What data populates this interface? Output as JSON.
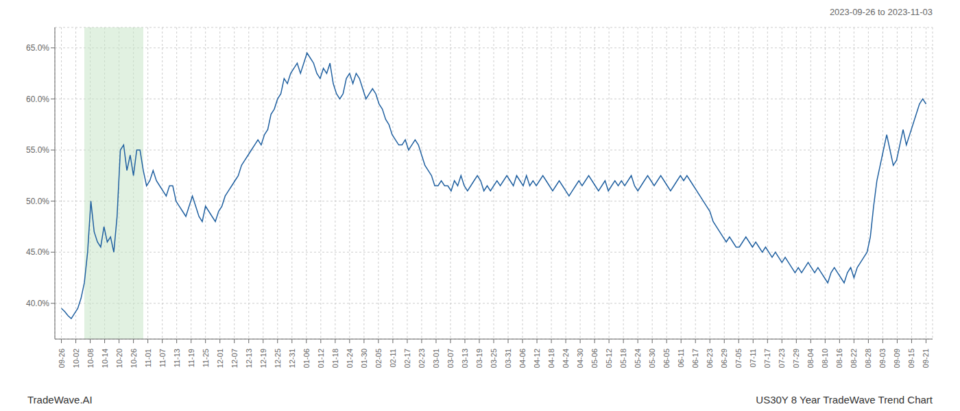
{
  "chart_data": {
    "type": "line",
    "title": "2023-09-26 to 2023-11-03",
    "annotations": [
      "TradeWave.AI",
      "US30Y 8 Year TradeWave Trend Chart"
    ],
    "color": "#2060a0",
    "grid": true,
    "ylim": [
      36.5,
      67.0
    ],
    "yticks": [
      {
        "value": 40.0,
        "label": "40.0%"
      },
      {
        "value": 45.0,
        "label": "45.0%"
      },
      {
        "value": 50.0,
        "label": "50.0%"
      },
      {
        "value": 55.0,
        "label": "55.0%"
      },
      {
        "value": 60.0,
        "label": "60.0%"
      },
      {
        "value": 65.0,
        "label": "65.0%"
      }
    ],
    "xlim": [
      -2,
      266
    ],
    "xticks": [
      {
        "value": 0,
        "label": "09-26"
      },
      {
        "value": 4.4,
        "label": "10-02"
      },
      {
        "value": 8.8,
        "label": "10-08"
      },
      {
        "value": 13.2,
        "label": "10-14"
      },
      {
        "value": 17.6,
        "label": "10-20"
      },
      {
        "value": 22,
        "label": "10-26"
      },
      {
        "value": 26.4,
        "label": "11-01"
      },
      {
        "value": 30.8,
        "label": "11-07"
      },
      {
        "value": 35.2,
        "label": "11-13"
      },
      {
        "value": 39.6,
        "label": "11-19"
      },
      {
        "value": 44,
        "label": "11-25"
      },
      {
        "value": 48.4,
        "label": "12-01"
      },
      {
        "value": 52.8,
        "label": "12-07"
      },
      {
        "value": 57.2,
        "label": "12-13"
      },
      {
        "value": 61.6,
        "label": "12-19"
      },
      {
        "value": 66,
        "label": "12-25"
      },
      {
        "value": 70.4,
        "label": "12-31"
      },
      {
        "value": 74.8,
        "label": "01-06"
      },
      {
        "value": 79.2,
        "label": "01-12"
      },
      {
        "value": 83.6,
        "label": "01-18"
      },
      {
        "value": 88,
        "label": "01-24"
      },
      {
        "value": 92.4,
        "label": "01-30"
      },
      {
        "value": 96.8,
        "label": "02-05"
      },
      {
        "value": 101.2,
        "label": "02-11"
      },
      {
        "value": 105.6,
        "label": "02-17"
      },
      {
        "value": 110,
        "label": "02-23"
      },
      {
        "value": 114.4,
        "label": "03-01"
      },
      {
        "value": 118.8,
        "label": "03-07"
      },
      {
        "value": 123.2,
        "label": "03-13"
      },
      {
        "value": 127.6,
        "label": "03-19"
      },
      {
        "value": 132,
        "label": "03-25"
      },
      {
        "value": 136.4,
        "label": "03-31"
      },
      {
        "value": 140.8,
        "label": "04-06"
      },
      {
        "value": 145.2,
        "label": "04-12"
      },
      {
        "value": 149.6,
        "label": "04-18"
      },
      {
        "value": 154,
        "label": "04-24"
      },
      {
        "value": 158.4,
        "label": "04-30"
      },
      {
        "value": 162.8,
        "label": "05-06"
      },
      {
        "value": 167.2,
        "label": "05-12"
      },
      {
        "value": 171.6,
        "label": "05-18"
      },
      {
        "value": 176,
        "label": "05-24"
      },
      {
        "value": 180.4,
        "label": "05-30"
      },
      {
        "value": 184.8,
        "label": "06-05"
      },
      {
        "value": 189.2,
        "label": "06-11"
      },
      {
        "value": 193.6,
        "label": "06-17"
      },
      {
        "value": 198,
        "label": "06-23"
      },
      {
        "value": 202.4,
        "label": "06-29"
      },
      {
        "value": 206.8,
        "label": "07-05"
      },
      {
        "value": 211.2,
        "label": "07-11"
      },
      {
        "value": 215.6,
        "label": "07-17"
      },
      {
        "value": 220,
        "label": "07-23"
      },
      {
        "value": 224.4,
        "label": "07-29"
      },
      {
        "value": 228.8,
        "label": "08-04"
      },
      {
        "value": 233.2,
        "label": "08-10"
      },
      {
        "value": 237.6,
        "label": "08-16"
      },
      {
        "value": 242,
        "label": "08-22"
      },
      {
        "value": 246.4,
        "label": "08-28"
      },
      {
        "value": 250.8,
        "label": "09-03"
      },
      {
        "value": 255.2,
        "label": "09-09"
      },
      {
        "value": 259.6,
        "label": "09-15"
      },
      {
        "value": 264,
        "label": "09-21"
      }
    ],
    "shaded_region": {
      "x_start": 7,
      "x_end": 25,
      "color": "#c8e6c9"
    },
    "x": [
      0,
      1,
      2,
      3,
      4,
      5,
      6,
      7,
      8,
      9,
      10,
      11,
      12,
      13,
      14,
      15,
      16,
      17,
      18,
      19,
      20,
      21,
      22,
      23,
      24,
      25,
      26,
      27,
      28,
      29,
      30,
      31,
      32,
      33,
      34,
      35,
      36,
      37,
      38,
      39,
      40,
      41,
      42,
      43,
      44,
      45,
      46,
      47,
      48,
      49,
      50,
      51,
      52,
      53,
      54,
      55,
      56,
      57,
      58,
      59,
      60,
      61,
      62,
      63,
      64,
      65,
      66,
      67,
      68,
      69,
      70,
      71,
      72,
      73,
      74,
      75,
      76,
      77,
      78,
      79,
      80,
      81,
      82,
      83,
      84,
      85,
      86,
      87,
      88,
      89,
      90,
      91,
      92,
      93,
      94,
      95,
      96,
      97,
      98,
      99,
      100,
      101,
      102,
      103,
      104,
      105,
      106,
      107,
      108,
      109,
      110,
      111,
      112,
      113,
      114,
      115,
      116,
      117,
      118,
      119,
      120,
      121,
      122,
      123,
      124,
      125,
      126,
      127,
      128,
      129,
      130,
      131,
      132,
      133,
      134,
      135,
      136,
      137,
      138,
      139,
      140,
      141,
      142,
      143,
      144,
      145,
      146,
      147,
      148,
      149,
      150,
      151,
      152,
      153,
      154,
      155,
      156,
      157,
      158,
      159,
      160,
      161,
      162,
      163,
      164,
      165,
      166,
      167,
      168,
      169,
      170,
      171,
      172,
      173,
      174,
      175,
      176,
      177,
      178,
      179,
      180,
      181,
      182,
      183,
      184,
      185,
      186,
      187,
      188,
      189,
      190,
      191,
      192,
      193,
      194,
      195,
      196,
      197,
      198,
      199,
      200,
      201,
      202,
      203,
      204,
      205,
      206,
      207,
      208,
      209,
      210,
      211,
      212,
      213,
      214,
      215,
      216,
      217,
      218,
      219,
      220,
      221,
      222,
      223,
      224,
      225,
      226,
      227,
      228,
      229,
      230,
      231,
      232,
      233,
      234,
      235,
      236,
      237,
      238,
      239,
      240,
      241,
      242,
      243,
      244,
      245,
      246,
      247,
      248,
      249,
      250,
      251,
      252,
      253,
      254,
      255,
      256,
      257,
      258,
      259,
      260,
      261,
      262,
      263,
      264
    ],
    "values": [
      39.5,
      39.2,
      38.8,
      38.5,
      39.0,
      39.5,
      40.5,
      42.0,
      45.0,
      50.0,
      47.0,
      46.0,
      45.5,
      47.5,
      46.0,
      46.5,
      45.0,
      48.5,
      55.0,
      55.5,
      53.0,
      54.5,
      52.5,
      55.0,
      55.0,
      53.0,
      51.5,
      52.0,
      53.0,
      52.0,
      51.5,
      51.0,
      50.5,
      51.5,
      51.5,
      50.0,
      49.5,
      49.0,
      48.5,
      49.5,
      50.5,
      49.5,
      48.5,
      48.0,
      49.5,
      49.0,
      48.5,
      48.0,
      49.0,
      49.5,
      50.5,
      51.0,
      51.5,
      52.0,
      52.5,
      53.5,
      54.0,
      54.5,
      55.0,
      55.5,
      56.0,
      55.5,
      56.5,
      57.0,
      58.5,
      59.0,
      60.0,
      60.5,
      62.0,
      61.5,
      62.5,
      63.0,
      63.5,
      62.5,
      63.5,
      64.5,
      64.0,
      63.5,
      62.5,
      62.0,
      63.0,
      62.5,
      63.5,
      61.5,
      60.5,
      60.0,
      60.5,
      62.0,
      62.5,
      61.5,
      62.5,
      62.0,
      61.0,
      60.0,
      60.5,
      61.0,
      60.5,
      59.5,
      59.0,
      58.0,
      57.5,
      56.5,
      56.0,
      55.5,
      55.5,
      56.0,
      55.0,
      55.5,
      56.0,
      55.5,
      54.5,
      53.5,
      53.0,
      52.5,
      51.5,
      51.5,
      52.0,
      51.5,
      51.5,
      51.0,
      52.0,
      51.5,
      52.5,
      51.5,
      51.0,
      51.5,
      52.0,
      52.5,
      52.0,
      51.0,
      51.5,
      51.0,
      51.5,
      52.0,
      51.5,
      52.0,
      52.5,
      52.0,
      51.5,
      52.5,
      52.0,
      51.5,
      52.5,
      51.5,
      52.0,
      51.5,
      52.0,
      52.5,
      52.0,
      51.5,
      51.0,
      51.5,
      52.0,
      51.5,
      51.0,
      50.5,
      51.0,
      51.5,
      52.0,
      51.5,
      52.0,
      52.5,
      52.0,
      51.5,
      51.0,
      51.5,
      52.0,
      51.0,
      51.5,
      52.0,
      51.5,
      52.0,
      51.5,
      52.0,
      52.5,
      51.5,
      51.0,
      51.5,
      52.0,
      52.5,
      52.0,
      51.5,
      52.0,
      52.5,
      52.0,
      51.5,
      51.0,
      51.5,
      52.0,
      52.5,
      52.0,
      52.5,
      52.0,
      51.5,
      51.0,
      50.5,
      50.0,
      49.5,
      49.0,
      48.0,
      47.5,
      47.0,
      46.5,
      46.0,
      46.5,
      46.0,
      45.5,
      45.5,
      46.0,
      46.5,
      46.0,
      45.5,
      46.0,
      45.5,
      45.0,
      45.5,
      45.0,
      44.5,
      45.0,
      44.5,
      44.0,
      44.5,
      44.0,
      43.5,
      43.0,
      43.5,
      43.0,
      43.5,
      44.0,
      43.5,
      43.0,
      43.5,
      43.0,
      42.5,
      42.0,
      43.0,
      43.5,
      43.0,
      42.5,
      42.0,
      43.0,
      43.5,
      42.5,
      43.5,
      44.0,
      44.5,
      45.0,
      46.5,
      49.5,
      52.0,
      53.5,
      55.0,
      56.5,
      55.0,
      53.5,
      54.0,
      55.5,
      57.0,
      55.5,
      56.5,
      57.5,
      58.5,
      59.5,
      60.0,
      59.5
    ]
  }
}
